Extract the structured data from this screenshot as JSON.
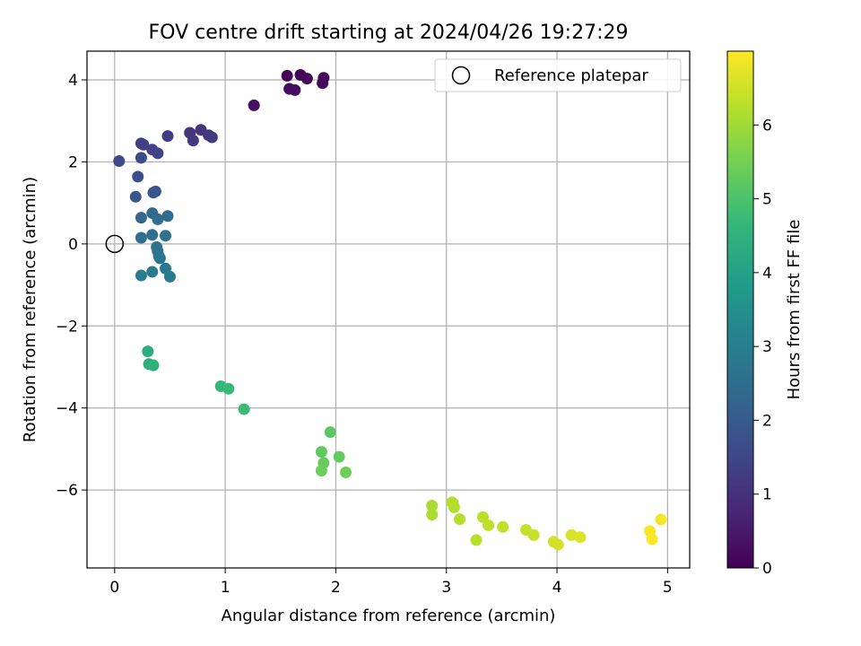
{
  "chart_data": {
    "type": "scatter",
    "title": "FOV centre drift starting at 2024/04/26 19:27:29",
    "xlabel": "Angular distance from reference (arcmin)",
    "ylabel": "Rotation from reference (arcmin)",
    "xlim": [
      -0.25,
      5.2
    ],
    "ylim": [
      -7.9,
      4.7
    ],
    "xticks": [
      0,
      1,
      2,
      3,
      4,
      5
    ],
    "yticks": [
      -6,
      -4,
      -2,
      0,
      2,
      4
    ],
    "xtick_labels": [
      "0",
      "1",
      "2",
      "3",
      "4",
      "5"
    ],
    "ytick_labels": [
      "−6",
      "−4",
      "−2",
      "0",
      "2",
      "4"
    ],
    "grid": true,
    "legend": {
      "placement": "upper right",
      "entries": [
        "Reference platepar"
      ]
    },
    "reference": {
      "x": 0,
      "y": 0
    },
    "colorbar": {
      "label": "Hours from first FF file",
      "range": [
        0,
        7
      ],
      "ticks": [
        0,
        1,
        2,
        3,
        4,
        5,
        6
      ],
      "tick_labels": [
        "0",
        "1",
        "2",
        "3",
        "4",
        "5",
        "6"
      ],
      "colormap": [
        "#440154",
        "#482777",
        "#3e4989",
        "#31688e",
        "#26828e",
        "#1f9e89",
        "#35b779",
        "#6ece58",
        "#b5de2b",
        "#fde725"
      ]
    },
    "series": [
      {
        "x": [
          1.56,
          1.68,
          1.74,
          1.89,
          1.88,
          1.58,
          1.63,
          1.26,
          0.78,
          0.68,
          0.85,
          0.88,
          0.71,
          0.48,
          0.24,
          0.26,
          0.34,
          0.39,
          0.04,
          0.24,
          0.21,
          0.35,
          0.37,
          0.19,
          0.24,
          0.34,
          0.48,
          0.39,
          0.24,
          0.34,
          0.46,
          0.38,
          0.39,
          0.4,
          0.41,
          0.46,
          0.34,
          0.5,
          0.24,
          0.3,
          0.31,
          0.35,
          0.96,
          1.03,
          1.17,
          1.95,
          1.87,
          2.03,
          1.89,
          1.87,
          2.09,
          2.87,
          2.87,
          3.06,
          3.07,
          3.12,
          3.05,
          3.27,
          3.33,
          3.38,
          3.51,
          3.72,
          3.79,
          3.97,
          4.01,
          4.13,
          4.21,
          4.94,
          4.84,
          4.86
        ],
        "y": [
          4.1,
          4.12,
          4.03,
          4.05,
          3.92,
          3.78,
          3.75,
          3.38,
          2.78,
          2.71,
          2.65,
          2.6,
          2.52,
          2.63,
          2.45,
          2.42,
          2.3,
          2.21,
          2.02,
          2.1,
          1.64,
          1.25,
          1.28,
          1.15,
          0.64,
          0.75,
          0.68,
          0.6,
          0.15,
          0.22,
          0.2,
          -0.08,
          -0.18,
          -0.3,
          -0.35,
          -0.6,
          -0.68,
          -0.8,
          -0.77,
          -2.62,
          -2.93,
          -2.96,
          -3.47,
          -3.53,
          -4.03,
          -4.59,
          -5.07,
          -5.19,
          -5.34,
          -5.53,
          -5.57,
          -6.38,
          -6.6,
          -6.32,
          -6.42,
          -6.71,
          -6.3,
          -7.22,
          -6.66,
          -6.86,
          -6.9,
          -6.97,
          -7.1,
          -7.26,
          -7.33,
          -7.1,
          -7.15,
          -6.72,
          -7.0,
          -7.2
        ],
        "hours": [
          0.05,
          0.08,
          0.12,
          0.15,
          0.18,
          0.22,
          0.25,
          0.3,
          1.05,
          1.1,
          1.15,
          1.18,
          1.2,
          1.25,
          1.3,
          1.35,
          1.4,
          1.45,
          1.55,
          1.6,
          1.7,
          1.8,
          1.85,
          1.9,
          2.3,
          2.35,
          2.4,
          2.45,
          2.5,
          2.55,
          2.6,
          2.65,
          2.7,
          2.72,
          2.75,
          2.8,
          2.85,
          2.9,
          2.95,
          4.35,
          4.4,
          4.45,
          4.65,
          4.7,
          4.75,
          5.2,
          5.25,
          5.3,
          5.35,
          5.4,
          5.45,
          6.1,
          6.12,
          6.15,
          6.18,
          6.2,
          6.22,
          6.25,
          6.3,
          6.33,
          6.36,
          6.4,
          6.45,
          6.5,
          6.55,
          6.6,
          6.65,
          6.92,
          6.95,
          6.98
        ]
      }
    ]
  }
}
